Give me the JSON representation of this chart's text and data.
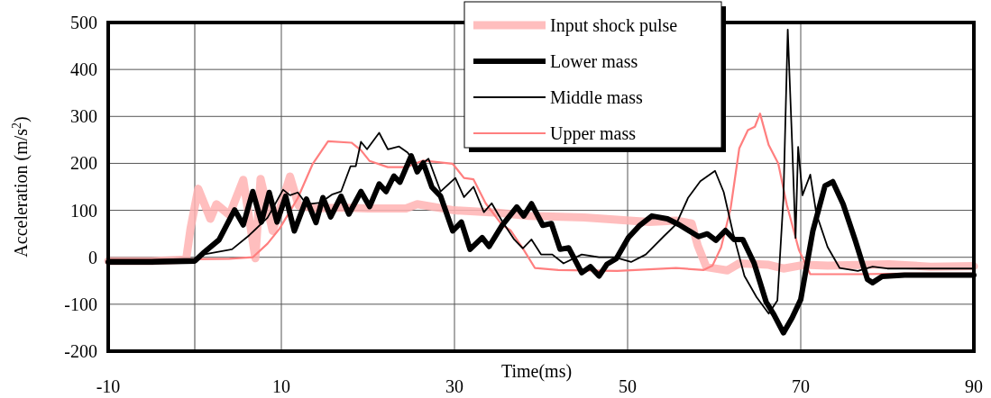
{
  "chart_data": {
    "type": "line",
    "xlabel": "Time(ms)",
    "ylabel": "Acceleration (m/s$^{2}$)",
    "xlim": [
      -10,
      90
    ],
    "xticks": [
      -10,
      10,
      30,
      50,
      70,
      90
    ],
    "ylim": [
      -200,
      500
    ],
    "yticks": [
      -200,
      -100,
      0,
      100,
      200,
      300,
      400,
      500
    ],
    "grid": true,
    "legend": "top",
    "marker": "none",
    "line_style": "solid",
    "ref_lines": [
      {
        "axis": "x",
        "value": 0,
        "color": "#606060"
      }
    ],
    "series": [
      {
        "name": "Input shock pulse",
        "color": "#ffb3b3",
        "x": [
          -10,
          -5,
          -1,
          -0.5,
          0.4,
          1.8,
          2.5,
          4,
          5.6,
          7,
          7.6,
          9,
          11,
          12,
          14,
          17,
          20,
          24.4,
          25.7,
          30,
          35,
          38.6,
          45,
          52.5,
          55.6,
          57.4,
          58.1,
          59.1,
          61.5,
          62.9,
          66.3,
          68,
          70.4,
          73.1,
          80.2,
          85,
          90
        ],
        "values": [
          -8,
          -8,
          -5,
          60,
          146,
          82,
          113,
          90,
          165,
          -2,
          167,
          56,
          172,
          110,
          104,
          106,
          104,
          104,
          113,
          100,
          95,
          88,
          85,
          75,
          78,
          72,
          25,
          -21,
          -28,
          -13,
          -16,
          -24,
          -16,
          -18,
          -15,
          -20,
          -19
        ]
      },
      {
        "name": "Lower mass",
        "color": "#000000",
        "x": [
          -10,
          -5,
          0,
          1.1,
          2.8,
          4.6,
          5.6,
          6.7,
          7.7,
          8.6,
          9.5,
          10.5,
          11.5,
          12.9,
          14,
          14.8,
          15.7,
          16.9,
          17.8,
          19.2,
          20.2,
          21.3,
          22.1,
          23,
          23.7,
          25,
          25.7,
          26.4,
          27.4,
          28.4,
          29.8,
          30.8,
          31.8,
          33.2,
          34,
          35.5,
          37.2,
          38,
          38.9,
          40.2,
          41.2,
          42.2,
          43.2,
          44.7,
          45.7,
          46.7,
          47.6,
          48.7,
          50.1,
          51.4,
          52.8,
          54.6,
          55.9,
          58.2,
          59.2,
          60.2,
          61.3,
          62.3,
          63.3,
          64.6,
          66,
          66.9,
          68,
          69,
          70,
          71.4,
          72.8,
          73.7,
          74.9,
          76.3,
          77.7,
          78.3,
          79.4,
          82,
          90
        ],
        "values": [
          -10,
          -10,
          -8,
          11,
          37,
          101,
          69,
          140,
          75,
          138,
          75,
          130,
          56,
          124,
          74,
          127,
          86,
          130,
          92,
          140,
          108,
          156,
          140,
          173,
          160,
          216,
          182,
          201,
          149,
          130,
          56,
          75,
          17,
          42,
          23,
          68,
          107,
          88,
          114,
          68,
          72,
          17,
          20,
          -33,
          -20,
          -40,
          -15,
          -3,
          42,
          68,
          88,
          82,
          70,
          44,
          50,
          36,
          57,
          38,
          38,
          -12,
          -95,
          -122,
          -161,
          -129,
          -90,
          56,
          152,
          161,
          113,
          36,
          -47,
          -54,
          -41,
          -38,
          -38
        ]
      },
      {
        "name": "Middle mass",
        "color": "#000000",
        "x": [
          -10,
          -5,
          0,
          1,
          4.3,
          6.3,
          8.4,
          10.2,
          11,
          11.9,
          12.9,
          14.5,
          15.9,
          16.9,
          18,
          18.6,
          19.2,
          19.9,
          21.3,
          22.3,
          23.6,
          24.6,
          25.7,
          27,
          28.4,
          30.1,
          31.1,
          32.2,
          33.4,
          34.3,
          35.5,
          36.9,
          37.9,
          38.9,
          40,
          41.3,
          42.6,
          44.7,
          46.7,
          48.5,
          50.4,
          52.1,
          54.2,
          55.6,
          57,
          58.4,
          60.1,
          61.1,
          62.2,
          63.5,
          64.9,
          66.3,
          67.3,
          68,
          68.5,
          69,
          69.4,
          69.7,
          70.2,
          71.1,
          71.8,
          73.1,
          74.5,
          76.6,
          78.3,
          80,
          90
        ],
        "values": [
          -5,
          -5,
          -3,
          6,
          17,
          47,
          84,
          144,
          132,
          138,
          113,
          116,
          134,
          140,
          194,
          194,
          246,
          230,
          265,
          230,
          236,
          223,
          191,
          210,
          140,
          169,
          128,
          150,
          96,
          115,
          77,
          38,
          19,
          38,
          6,
          6,
          -13,
          6,
          0,
          0,
          -10,
          6,
          45,
          70,
          127,
          162,
          184,
          139,
          50,
          -40,
          -85,
          -120,
          -92,
          125,
          485,
          245,
          41,
          235,
          132,
          176,
          93,
          22,
          -23,
          -29,
          -20,
          -24,
          -24
        ]
      },
      {
        "name": "Upper mass",
        "color": "#ff7f7f",
        "x": [
          -10,
          -5,
          4,
          6.7,
          8.4,
          9.8,
          11.9,
          13.6,
          15.4,
          18.1,
          19.2,
          20.2,
          22.3,
          24.4,
          26.4,
          29.8,
          31.1,
          32.2,
          33.6,
          35.5,
          36.5,
          37.9,
          39.3,
          42,
          48.8,
          55.6,
          58.8,
          59.8,
          60.8,
          61.9,
          62.9,
          63.9,
          64.7,
          65.3,
          66.3,
          67.4,
          68.4,
          69.8,
          71.1,
          73,
          76.6,
          82,
          90
        ],
        "values": [
          -5,
          -5,
          -3,
          0,
          29,
          61,
          126,
          198,
          247,
          244,
          228,
          205,
          192,
          192,
          206,
          199,
          169,
          166,
          115,
          69,
          57,
          19,
          -23,
          -27,
          -29,
          -23,
          -27,
          -18,
          21,
          104,
          232,
          271,
          278,
          306,
          239,
          200,
          111,
          15,
          -36,
          -36,
          -36,
          -35,
          -35
        ]
      }
    ]
  }
}
